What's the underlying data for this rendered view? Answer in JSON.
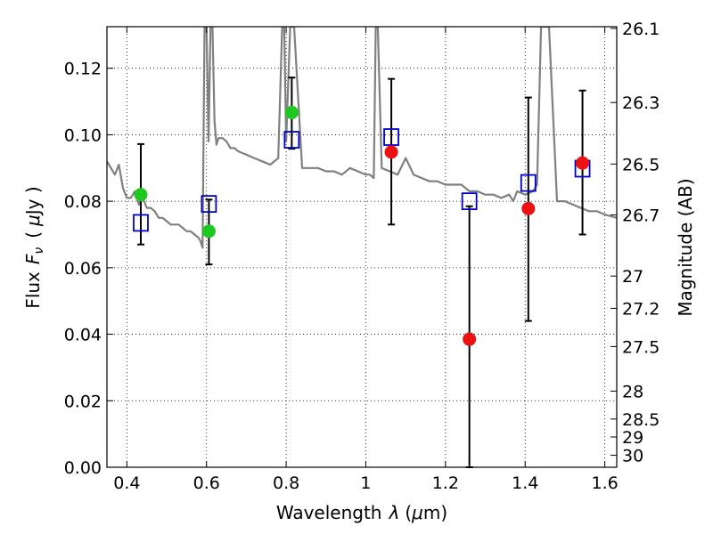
{
  "chart_data": {
    "type": "scatter",
    "xlabel_text": "Wavelength",
    "xlabel_symbol": "λ",
    "xlabel_unit_open": "(",
    "xlabel_unit_mu": "μ",
    "xlabel_unit_rest": "m)",
    "ylabel_text": "Flux",
    "ylabel_symbol": "F",
    "ylabel_subscript": "ν",
    "ylabel_unit_open": "(",
    "ylabel_unit_mu": "μ",
    "ylabel_unit_rest": "Jy )",
    "y2label": "Magnitude (AB)",
    "xlim": [
      0.35,
      1.63
    ],
    "ylim": [
      0.0,
      0.1325
    ],
    "grid": true,
    "xticks": [
      0.4,
      0.6,
      0.8,
      1.0,
      1.2,
      1.4,
      1.6
    ],
    "xtick_labels": [
      "0.4",
      "0.6",
      "0.8",
      "1",
      "1.2",
      "1.4",
      "1.6"
    ],
    "yticks": [
      0.0,
      0.02,
      0.04,
      0.06,
      0.08,
      0.1,
      0.12
    ],
    "ytick_labels": [
      "0.00",
      "0.02",
      "0.04",
      "0.06",
      "0.08",
      "0.10",
      "0.12"
    ],
    "y2ticks": [
      {
        "label": "26.1",
        "flux": 0.132
      },
      {
        "label": "26.3",
        "flux": 0.1097
      },
      {
        "label": "26.5",
        "flux": 0.0912
      },
      {
        "label": "26.7",
        "flux": 0.0759
      },
      {
        "label": "27",
        "flux": 0.0575
      },
      {
        "label": "27.2",
        "flux": 0.0478
      },
      {
        "label": "27.5",
        "flux": 0.0363
      },
      {
        "label": "28",
        "flux": 0.0229
      },
      {
        "label": "28.5",
        "flux": 0.0145
      },
      {
        "label": "29",
        "flux": 0.0091
      },
      {
        "label": "30",
        "flux": 0.0036
      }
    ],
    "colors": {
      "green": "#1ec81e",
      "red": "#ee1111",
      "blue": "#0000cc",
      "sed": "#808080",
      "errorbar": "#000000"
    },
    "series": [
      {
        "marker": "circle",
        "color": "green",
        "points": [
          {
            "x": 0.435,
            "y": 0.082
          },
          {
            "x": 0.606,
            "y": 0.071
          },
          {
            "x": 0.814,
            "y": 0.1067
          }
        ]
      },
      {
        "marker": "circle",
        "color": "red",
        "points": [
          {
            "x": 1.064,
            "y": 0.0948
          },
          {
            "x": 1.26,
            "y": 0.0385
          },
          {
            "x": 1.408,
            "y": 0.0778
          },
          {
            "x": 1.544,
            "y": 0.0915
          }
        ]
      },
      {
        "marker": "square",
        "color": "blue",
        "points": [
          {
            "x": 0.435,
            "y": 0.0735
          },
          {
            "x": 0.606,
            "y": 0.0792
          },
          {
            "x": 0.814,
            "y": 0.0985
          },
          {
            "x": 1.064,
            "y": 0.0993
          },
          {
            "x": 1.26,
            "y": 0.08
          },
          {
            "x": 1.408,
            "y": 0.0855
          },
          {
            "x": 1.544,
            "y": 0.0898
          }
        ]
      },
      {
        "type": "line",
        "color": "sed",
        "x": [
          0.35,
          0.37,
          0.38,
          0.39,
          0.4,
          0.41,
          0.42,
          0.43,
          0.44,
          0.45,
          0.46,
          0.47,
          0.48,
          0.49,
          0.5,
          0.51,
          0.52,
          0.53,
          0.54,
          0.55,
          0.56,
          0.57,
          0.58,
          0.585,
          0.59,
          0.595,
          0.6,
          0.605,
          0.61,
          0.615,
          0.62,
          0.625,
          0.63,
          0.64,
          0.65,
          0.655,
          0.66,
          0.67,
          0.68,
          0.7,
          0.72,
          0.74,
          0.76,
          0.78,
          0.79,
          0.795,
          0.8,
          0.81,
          0.82,
          0.84,
          0.86,
          0.88,
          0.9,
          0.92,
          0.94,
          0.96,
          0.98,
          1.0,
          1.01,
          1.02,
          1.025,
          1.03,
          1.04,
          1.06,
          1.08,
          1.1,
          1.12,
          1.14,
          1.16,
          1.18,
          1.2,
          1.22,
          1.24,
          1.26,
          1.28,
          1.3,
          1.32,
          1.34,
          1.36,
          1.37,
          1.38,
          1.4,
          1.42,
          1.43,
          1.44,
          1.46,
          1.48,
          1.5,
          1.52,
          1.54,
          1.56,
          1.58,
          1.6,
          1.63
        ],
        "y": [
          0.092,
          0.088,
          0.091,
          0.084,
          0.081,
          0.081,
          0.083,
          0.079,
          0.081,
          0.078,
          0.078,
          0.077,
          0.075,
          0.075,
          0.074,
          0.073,
          0.073,
          0.073,
          0.072,
          0.071,
          0.071,
          0.07,
          0.069,
          0.068,
          0.066,
          0.1325,
          0.1325,
          0.098,
          0.1325,
          0.1325,
          0.104,
          0.097,
          0.099,
          0.099,
          0.098,
          0.097,
          0.096,
          0.096,
          0.095,
          0.094,
          0.093,
          0.092,
          0.091,
          0.093,
          0.1325,
          0.1325,
          0.098,
          0.1325,
          0.1325,
          0.09,
          0.09,
          0.09,
          0.089,
          0.089,
          0.088,
          0.09,
          0.089,
          0.088,
          0.088,
          0.087,
          0.1325,
          0.1325,
          0.09,
          0.089,
          0.088,
          0.093,
          0.088,
          0.087,
          0.086,
          0.086,
          0.085,
          0.085,
          0.085,
          0.083,
          0.083,
          0.082,
          0.082,
          0.081,
          0.082,
          0.08,
          0.083,
          0.082,
          0.083,
          0.085,
          0.1325,
          0.1325,
          0.08,
          0.08,
          0.079,
          0.078,
          0.077,
          0.077,
          0.076,
          0.075
        ]
      }
    ],
    "errorbars": [
      {
        "x": 0.435,
        "low": 0.067,
        "high": 0.0972
      },
      {
        "x": 0.606,
        "low": 0.061,
        "high": 0.0805
      },
      {
        "x": 0.814,
        "low": 0.0958,
        "high": 0.1172
      },
      {
        "x": 1.064,
        "low": 0.073,
        "high": 0.1168
      },
      {
        "x": 1.26,
        "low": 0.0,
        "high": 0.0785
      },
      {
        "x": 1.408,
        "low": 0.044,
        "high": 0.1112
      },
      {
        "x": 1.544,
        "low": 0.07,
        "high": 0.1133
      }
    ]
  }
}
